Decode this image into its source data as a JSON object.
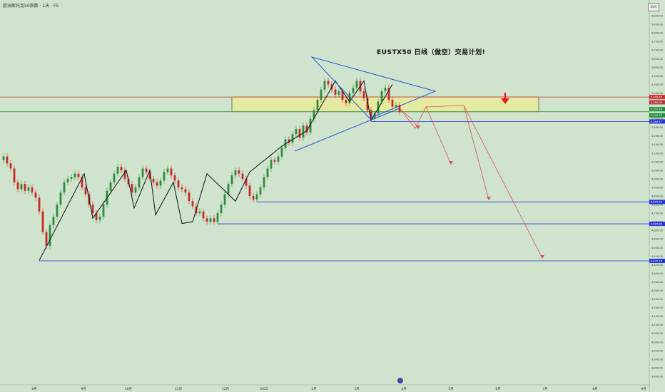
{
  "header": {
    "symbol_name": "欧洲斯托克50指数",
    "timeframe": "· 1天 ·",
    "exchange": "FS",
    "currency": "EUR"
  },
  "colors": {
    "background": "#cfe3cd",
    "up": "#2e8b3e",
    "down": "#c62828",
    "zone_fill": "#e6eaa0",
    "support_line": "#2b36d6",
    "resistance_line": "#d32f2f",
    "projection": "#d9534f",
    "trend": "#111111",
    "triangle": "#2b56d6",
    "current_price": "#1f8f3a"
  },
  "chart_data": {
    "type": "candlestick",
    "title": "EUSTX50   日线（做空）交易计划!",
    "ylim": [
      3750,
      5950
    ],
    "y_ticks": [
      "5,900.00",
      "5,850.00",
      "5,800.00",
      "5,750.00",
      "5,700.00",
      "5,650.00",
      "5,600.00",
      "5,550.00",
      "5,500.00",
      "5,450.00",
      "5,400.00",
      "5,350.00",
      "5,300.00",
      "5,250.00",
      "5,200.00",
      "5,150.00",
      "5,100.00",
      "5,050.00",
      "5,000.00",
      "4,950.00",
      "4,900.00",
      "4,850.00",
      "4,800.00",
      "4,750.00",
      "4,700.00",
      "4,650.00",
      "4,600.00",
      "4,550.00",
      "4,500.00",
      "4,450.00",
      "4,400.00",
      "4,350.00",
      "4,300.00",
      "4,250.00",
      "4,200.00",
      "4,150.00",
      "4,100.00",
      "4,050.00",
      "4,000.00",
      "3,950.00",
      "3,900.00",
      "3,850.00",
      "3,800.00"
    ],
    "x_ticks": [
      "8月",
      "9月",
      "10月",
      "11月",
      "12月",
      "2025",
      "2月",
      "3月",
      "4月",
      "5月",
      "6月",
      "7月",
      "8月",
      "9月"
    ],
    "price_labels": [
      {
        "text": "5,426.45",
        "kind": "resistance"
      },
      {
        "text": "5,395.96",
        "kind": "zone"
      },
      {
        "text": "5,355.44",
        "kind": "current"
      },
      {
        "text": "5,340.78",
        "kind": "current"
      },
      {
        "text": "5,284.17",
        "kind": "support"
      },
      {
        "text": "4,815.59",
        "kind": "support"
      },
      {
        "text": "4,687.80",
        "kind": "support"
      },
      {
        "text": "4,472.15",
        "kind": "support"
      }
    ],
    "levels": [
      {
        "price": 5426.45,
        "kind": "resistance"
      },
      {
        "price": 5340.78,
        "kind": "current"
      },
      {
        "price": 5284.17,
        "kind": "support"
      },
      {
        "price": 4815.59,
        "kind": "support"
      },
      {
        "price": 4687.8,
        "kind": "support"
      },
      {
        "price": 4472.15,
        "kind": "support"
      }
    ],
    "zone": [
      5340.78,
      5426.45
    ],
    "trend_line": [
      4475,
      4980,
      4720,
      5000,
      4780,
      5000,
      4740,
      4930,
      4690,
      4700,
      4980,
      4820,
      4990,
      5140,
      5230,
      5520,
      5400,
      5520,
      5290,
      5500
    ],
    "candles": [
      5080,
      5040,
      5010,
      4930,
      4890,
      4920,
      4880,
      4900,
      4870,
      4840,
      4760,
      4640,
      4560,
      4680,
      4730,
      4800,
      4870,
      4930,
      4950,
      4960,
      4980,
      4960,
      4900,
      4860,
      4800,
      4750,
      4710,
      4730,
      4800,
      4880,
      4930,
      4980,
      5020,
      5000,
      4950,
      4920,
      4870,
      4900,
      4960,
      5010,
      4990,
      4950,
      4930,
      4910,
      4940,
      4990,
      5010,
      4970,
      4940,
      4900,
      4890,
      4870,
      4820,
      4790,
      4750,
      4760,
      4720,
      4700,
      4720,
      4700,
      4750,
      4800,
      4860,
      4920,
      4970,
      5000,
      4980,
      4950,
      4910,
      4850,
      4830,
      4860,
      4900,
      4960,
      5010,
      5060,
      5050,
      5080,
      5130,
      5180,
      5160,
      5210,
      5240,
      5190,
      5260,
      5220,
      5300,
      5350,
      5410,
      5470,
      5520,
      5500,
      5470,
      5440,
      5460,
      5410,
      5390,
      5450,
      5480,
      5520,
      5460,
      5420,
      5350,
      5300,
      5330,
      5400,
      5460,
      5480,
      5410,
      5370,
      5380,
      5340
    ]
  }
}
